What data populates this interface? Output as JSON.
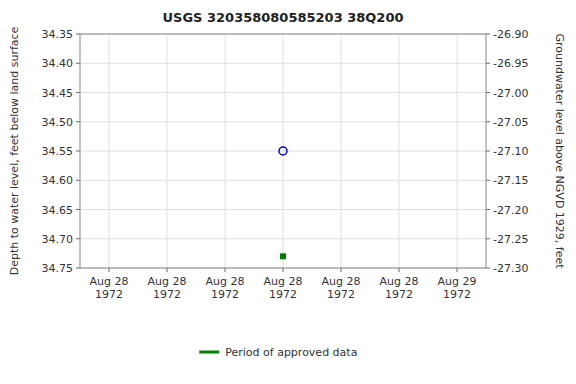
{
  "chart_data": {
    "type": "scatter",
    "title": "USGS 320358080585203 38Q200",
    "y_label": "Depth to water level, feet below land surface",
    "y2_label": "Groundwater level above NGVD 1929, feet",
    "categories": [
      "Aug 28\n1972",
      "Aug 28\n1972",
      "Aug 28\n1972",
      "Aug 28\n1972",
      "Aug 28\n1972",
      "Aug 28\n1972",
      "Aug 29\n1972"
    ],
    "series": [
      {
        "color": "#0000cc",
        "marker": "circle",
        "values": [
          null,
          null,
          null,
          34.55,
          null,
          null,
          null
        ]
      },
      {
        "name": "Period of approved data",
        "color": "#008000",
        "marker": "square",
        "values": [
          null,
          null,
          null,
          34.73,
          null,
          null,
          null
        ]
      }
    ],
    "ylim": [
      34.75,
      34.35
    ],
    "yticks": [
      34.35,
      {
        "value": 34.4,
        "label": "34.40"
      },
      34.45,
      {
        "value": 34.5,
        "label": "34.50"
      },
      34.55,
      {
        "value": 34.6,
        "label": "34.60"
      },
      34.65,
      {
        "value": 34.7,
        "label": "34.70"
      },
      34.75
    ],
    "y2lim": [
      -27.3,
      -26.9
    ],
    "y2ticks": [
      {
        "value": -26.9,
        "label": "-26.90"
      },
      -26.95,
      {
        "value": -27.0,
        "label": "-27.00"
      },
      -27.05,
      {
        "value": -27.1,
        "label": "-27.10"
      },
      -27.15,
      {
        "value": -27.2,
        "label": "-27.20"
      },
      -27.25,
      {
        "value": -27.3,
        "label": "-27.30"
      }
    ],
    "grid": true,
    "legend": "bottom"
  }
}
